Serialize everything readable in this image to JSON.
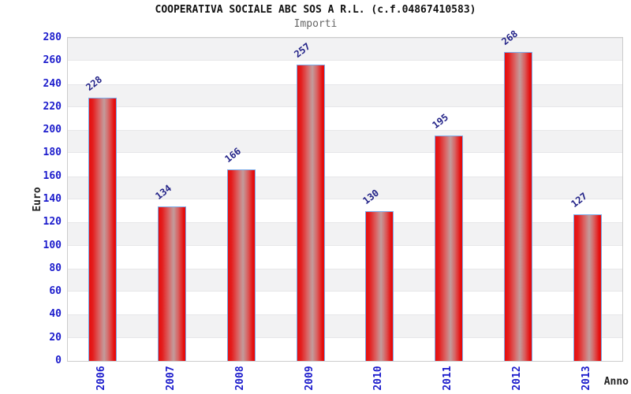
{
  "chart_data": {
    "type": "bar",
    "title": "COOPERATIVA SOCIALE ABC SOS A R.L. (c.f.04867410583)",
    "subtitle": "Importi",
    "xlabel": "Anno",
    "ylabel": "Euro",
    "categories": [
      "2006",
      "2007",
      "2008",
      "2009",
      "2010",
      "2011",
      "2012",
      "2013"
    ],
    "values": [
      228,
      134,
      166,
      257,
      130,
      195,
      268,
      127
    ],
    "ylim": [
      0,
      280
    ],
    "ytick_step": 20,
    "legend": "none",
    "grid": "alternating-horizontal-bands",
    "band_colors": {
      "dark": "#f2f2f3",
      "light": "#ffffff"
    },
    "bar_fill": "#e60c0c",
    "bar_highlight": "#c29c9c",
    "bar_border": "#7aaae8",
    "tick_label_color": "#1c1ccc",
    "value_label_color": "#232388",
    "title_color": "#111111",
    "subtitle_color": "#666666",
    "plot_border_color": "#cccccc"
  }
}
